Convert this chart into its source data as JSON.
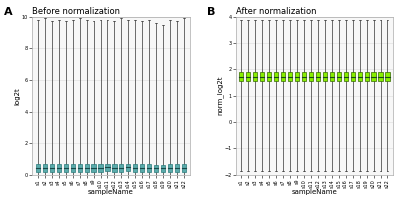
{
  "panel_A": {
    "title": "Before normalization",
    "ylabel": "log2t",
    "xlabel": "sampleName",
    "ylim": [
      0,
      10
    ],
    "yticks": [
      0,
      2,
      4,
      6,
      8,
      10
    ],
    "box_color": "#5aabab",
    "median_color": "#1a4a4a",
    "box_edge_color": "#2a7a7a",
    "n_samples": 22,
    "sample_labels": [
      "s1",
      "s2",
      "s3",
      "s4",
      "s5",
      "s6",
      "s7",
      "s8",
      "s9",
      "s10",
      "s11",
      "s12",
      "s13",
      "s14",
      "s15",
      "s16",
      "s17",
      "s18",
      "s19",
      "s20",
      "s21",
      "s22"
    ],
    "boxes": [
      {
        "q1": 0.2,
        "median": 0.45,
        "q3": 0.65,
        "whisker_lo": 0.0,
        "whisker_hi": 9.8
      },
      {
        "q1": 0.2,
        "median": 0.45,
        "q3": 0.65,
        "whisker_lo": 0.0,
        "whisker_hi": 9.9
      },
      {
        "q1": 0.2,
        "median": 0.45,
        "q3": 0.65,
        "whisker_lo": 0.0,
        "whisker_hi": 9.7
      },
      {
        "q1": 0.2,
        "median": 0.45,
        "q3": 0.65,
        "whisker_lo": 0.0,
        "whisker_hi": 9.8
      },
      {
        "q1": 0.2,
        "median": 0.45,
        "q3": 0.65,
        "whisker_lo": 0.0,
        "whisker_hi": 9.7
      },
      {
        "q1": 0.2,
        "median": 0.45,
        "q3": 0.65,
        "whisker_lo": 0.0,
        "whisker_hi": 9.8
      },
      {
        "q1": 0.2,
        "median": 0.45,
        "q3": 0.65,
        "whisker_lo": 0.0,
        "whisker_hi": 9.9
      },
      {
        "q1": 0.2,
        "median": 0.45,
        "q3": 0.65,
        "whisker_lo": 0.0,
        "whisker_hi": 9.8
      },
      {
        "q1": 0.2,
        "median": 0.45,
        "q3": 0.65,
        "whisker_lo": 0.0,
        "whisker_hi": 9.7
      },
      {
        "q1": 0.2,
        "median": 0.45,
        "q3": 0.65,
        "whisker_lo": 0.0,
        "whisker_hi": 9.8
      },
      {
        "q1": 0.25,
        "median": 0.5,
        "q3": 0.7,
        "whisker_lo": 0.0,
        "whisker_hi": 9.8
      },
      {
        "q1": 0.2,
        "median": 0.45,
        "q3": 0.65,
        "whisker_lo": 0.0,
        "whisker_hi": 9.7
      },
      {
        "q1": 0.2,
        "median": 0.45,
        "q3": 0.65,
        "whisker_lo": 0.0,
        "whisker_hi": 9.9
      },
      {
        "q1": 0.25,
        "median": 0.5,
        "q3": 0.7,
        "whisker_lo": 0.0,
        "whisker_hi": 9.8
      },
      {
        "q1": 0.2,
        "median": 0.45,
        "q3": 0.65,
        "whisker_lo": 0.0,
        "whisker_hi": 9.8
      },
      {
        "q1": 0.2,
        "median": 0.45,
        "q3": 0.65,
        "whisker_lo": 0.0,
        "whisker_hi": 9.7
      },
      {
        "q1": 0.2,
        "median": 0.45,
        "q3": 0.65,
        "whisker_lo": 0.0,
        "whisker_hi": 9.8
      },
      {
        "q1": 0.15,
        "median": 0.4,
        "q3": 0.6,
        "whisker_lo": 0.0,
        "whisker_hi": 9.6
      },
      {
        "q1": 0.15,
        "median": 0.4,
        "q3": 0.6,
        "whisker_lo": 0.0,
        "whisker_hi": 9.5
      },
      {
        "q1": 0.2,
        "median": 0.45,
        "q3": 0.65,
        "whisker_lo": 0.0,
        "whisker_hi": 9.8
      },
      {
        "q1": 0.2,
        "median": 0.45,
        "q3": 0.65,
        "whisker_lo": 0.0,
        "whisker_hi": 9.7
      },
      {
        "q1": 0.2,
        "median": 0.45,
        "q3": 0.65,
        "whisker_lo": 0.0,
        "whisker_hi": 9.9
      }
    ]
  },
  "panel_B": {
    "title": "After normalization",
    "ylabel": "norm_log2t",
    "xlabel": "sampleName",
    "ylim": [
      -2,
      4
    ],
    "yticks": [
      -2,
      -1,
      0,
      1,
      2,
      3,
      4
    ],
    "box_color": "#88ee00",
    "median_color": "#1a4a1a",
    "box_edge_color": "#336600",
    "n_samples": 22,
    "sample_labels": [
      "s1",
      "s2",
      "s3",
      "s4",
      "s5",
      "s6",
      "s7",
      "s8",
      "s9",
      "s10",
      "s11",
      "s12",
      "s13",
      "s14",
      "s15",
      "s16",
      "s17",
      "s18",
      "s19",
      "s20",
      "s21",
      "s22"
    ],
    "boxes": [
      {
        "q1": 1.55,
        "median": 1.72,
        "q3": 1.92,
        "whisker_lo": -1.85,
        "whisker_hi": 3.88
      },
      {
        "q1": 1.55,
        "median": 1.72,
        "q3": 1.92,
        "whisker_lo": -1.85,
        "whisker_hi": 3.88
      },
      {
        "q1": 1.55,
        "median": 1.72,
        "q3": 1.92,
        "whisker_lo": -1.85,
        "whisker_hi": 3.88
      },
      {
        "q1": 1.55,
        "median": 1.72,
        "q3": 1.92,
        "whisker_lo": -1.85,
        "whisker_hi": 3.88
      },
      {
        "q1": 1.55,
        "median": 1.72,
        "q3": 1.92,
        "whisker_lo": -1.85,
        "whisker_hi": 3.88
      },
      {
        "q1": 1.55,
        "median": 1.72,
        "q3": 1.92,
        "whisker_lo": -1.85,
        "whisker_hi": 3.88
      },
      {
        "q1": 1.55,
        "median": 1.72,
        "q3": 1.92,
        "whisker_lo": -1.85,
        "whisker_hi": 3.88
      },
      {
        "q1": 1.55,
        "median": 1.72,
        "q3": 1.92,
        "whisker_lo": -1.85,
        "whisker_hi": 3.88
      },
      {
        "q1": 1.55,
        "median": 1.72,
        "q3": 1.92,
        "whisker_lo": -1.85,
        "whisker_hi": 3.88
      },
      {
        "q1": 1.55,
        "median": 1.72,
        "q3": 1.92,
        "whisker_lo": -1.85,
        "whisker_hi": 3.88
      },
      {
        "q1": 1.55,
        "median": 1.72,
        "q3": 1.92,
        "whisker_lo": -1.85,
        "whisker_hi": 3.88
      },
      {
        "q1": 1.55,
        "median": 1.72,
        "q3": 1.92,
        "whisker_lo": -1.85,
        "whisker_hi": 3.88
      },
      {
        "q1": 1.55,
        "median": 1.72,
        "q3": 1.92,
        "whisker_lo": -1.85,
        "whisker_hi": 3.88
      },
      {
        "q1": 1.55,
        "median": 1.72,
        "q3": 1.92,
        "whisker_lo": -1.85,
        "whisker_hi": 3.88
      },
      {
        "q1": 1.55,
        "median": 1.72,
        "q3": 1.92,
        "whisker_lo": -1.85,
        "whisker_hi": 3.88
      },
      {
        "q1": 1.55,
        "median": 1.72,
        "q3": 1.92,
        "whisker_lo": -1.85,
        "whisker_hi": 3.88
      },
      {
        "q1": 1.55,
        "median": 1.72,
        "q3": 1.92,
        "whisker_lo": -1.85,
        "whisker_hi": 3.88
      },
      {
        "q1": 1.55,
        "median": 1.72,
        "q3": 1.92,
        "whisker_lo": -1.85,
        "whisker_hi": 3.88
      },
      {
        "q1": 1.55,
        "median": 1.72,
        "q3": 1.92,
        "whisker_lo": -1.85,
        "whisker_hi": 3.88
      },
      {
        "q1": 1.55,
        "median": 1.72,
        "q3": 1.92,
        "whisker_lo": -1.85,
        "whisker_hi": 3.88
      },
      {
        "q1": 1.55,
        "median": 1.72,
        "q3": 1.92,
        "whisker_lo": -1.85,
        "whisker_hi": 3.88
      },
      {
        "q1": 1.55,
        "median": 1.72,
        "q3": 1.92,
        "whisker_lo": -1.85,
        "whisker_hi": 3.88
      }
    ]
  },
  "whisker_color": "#333333",
  "bg_color": "#ffffff",
  "panel_bg_color": "#f7f7f7",
  "grid_color": "#dddddd",
  "label_fontsize": 5,
  "title_fontsize": 6,
  "tick_fontsize": 3.5
}
